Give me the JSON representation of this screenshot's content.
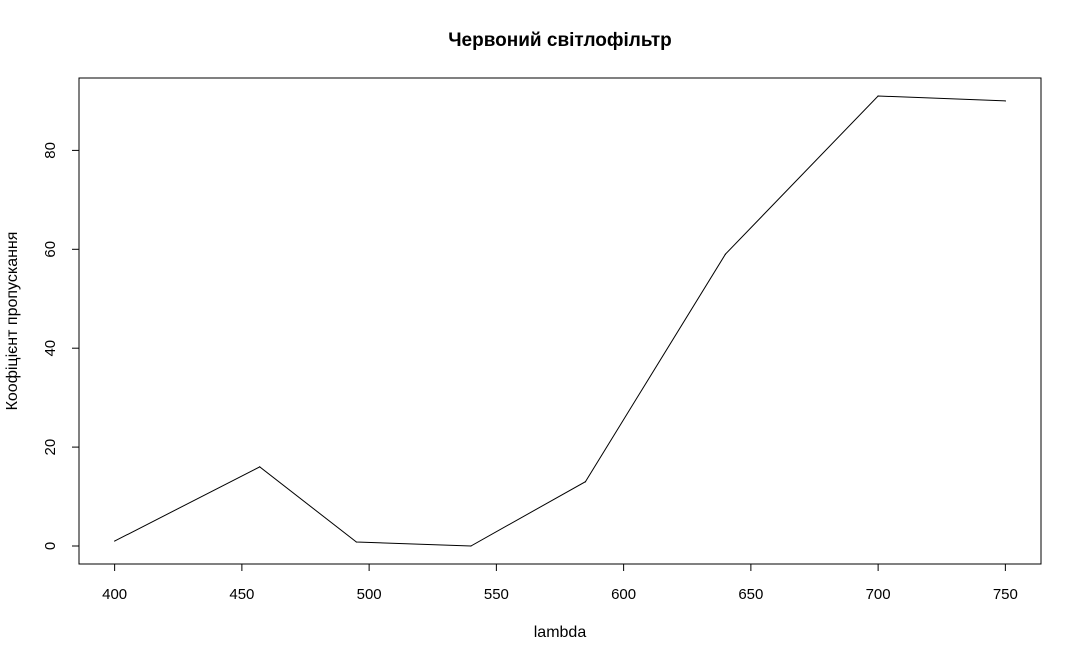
{
  "chart_data": {
    "type": "line",
    "title": "Червоний світлофільтр",
    "xlabel": "lambda",
    "ylabel": "Коофіцієнт пропускання",
    "x": [
      400,
      457,
      495,
      540,
      585,
      640,
      700,
      750
    ],
    "series": [
      {
        "values": [
          1,
          16,
          0.8,
          0,
          13,
          59,
          91,
          90
        ]
      }
    ],
    "xticks": [
      "400",
      "450",
      "500",
      "550",
      "600",
      "650",
      "700",
      "750"
    ],
    "yticks": [
      "0",
      "20",
      "40",
      "60",
      "80"
    ],
    "xlim": [
      386,
      764
    ],
    "ylim": [
      -3.64,
      94.64
    ],
    "grid": false,
    "line_color": "#000000"
  }
}
